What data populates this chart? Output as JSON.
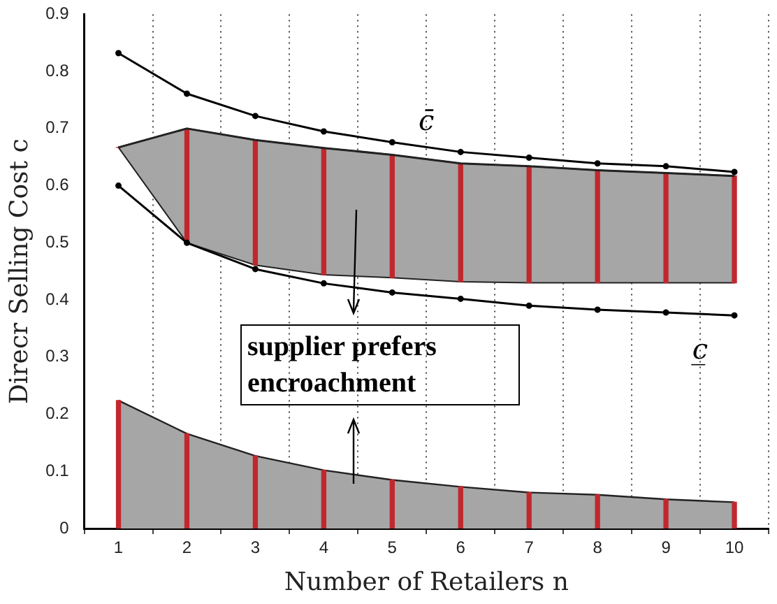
{
  "chart_data": {
    "type": "line",
    "xlabel": "Number of Retailers n",
    "ylabel": "Direcr Selling Cost c",
    "x": [
      1,
      2,
      3,
      4,
      5,
      6,
      7,
      8,
      9,
      10
    ],
    "xlim": [
      1,
      10
    ],
    "xticks": [
      1,
      2,
      3,
      4,
      5,
      6,
      7,
      8,
      9,
      10
    ],
    "ylim": [
      0,
      0.9
    ],
    "yticks": [
      0,
      0.1,
      0.2,
      0.3,
      0.4,
      0.5,
      0.6,
      0.7,
      0.8,
      0.9
    ],
    "grid": "x",
    "legend": false,
    "marker": "circle",
    "line_style": "solid",
    "series": [
      {
        "color": "#222222",
        "marker": "none",
        "values": [
          0.667,
          0.7,
          0.68,
          0.666,
          0.654,
          0.639,
          0.634,
          0.627,
          0.622,
          0.617
        ],
        "lower": [
          0.667,
          0.5,
          0.461,
          0.444,
          0.439,
          0.432,
          0.43,
          0.43,
          0.43,
          0.43
        ],
        "upper": [
          0.667,
          0.7,
          0.68,
          0.666,
          0.654,
          0.639,
          0.634,
          0.627,
          0.622,
          0.617
        ]
      },
      {
        "type": "area",
        "color": "#a6a6a6",
        "marker": "none",
        "values": [
          0.224,
          0.166,
          0.127,
          0.102,
          0.085,
          0.073,
          0.063,
          0.059,
          0.051,
          0.046
        ]
      },
      {
        "type": "bar",
        "color": "#c0282d",
        "base": [
          0.667,
          0.5,
          0.461,
          0.444,
          0.439,
          0.432,
          0.43,
          0.43,
          0.43,
          0.43
        ],
        "values": [
          0,
          0.2,
          0.219,
          0.222,
          0.215,
          0.207,
          0.204,
          0.197,
          0.192,
          0.187
        ]
      },
      {
        "type": "bar",
        "color": "#c0282d",
        "base": [
          0,
          0,
          0,
          0,
          0,
          0,
          0,
          0,
          0,
          0
        ],
        "values": [
          0.224,
          0.166,
          0.127,
          0.102,
          0.085,
          0.073,
          0.063,
          0.059,
          0.051,
          0.046
        ]
      },
      {
        "name": "c̄",
        "color": "#000000",
        "values": [
          0.832,
          0.761,
          0.722,
          0.695,
          0.676,
          0.659,
          0.649,
          0.639,
          0.634,
          0.624
        ]
      },
      {
        "name": "c̲",
        "color": "#000000",
        "values": [
          0.6,
          0.5,
          0.454,
          0.429,
          0.413,
          0.402,
          0.39,
          0.383,
          0.378,
          0.373
        ]
      }
    ],
    "annotations": [
      "supplier prefers encroachment"
    ]
  }
}
